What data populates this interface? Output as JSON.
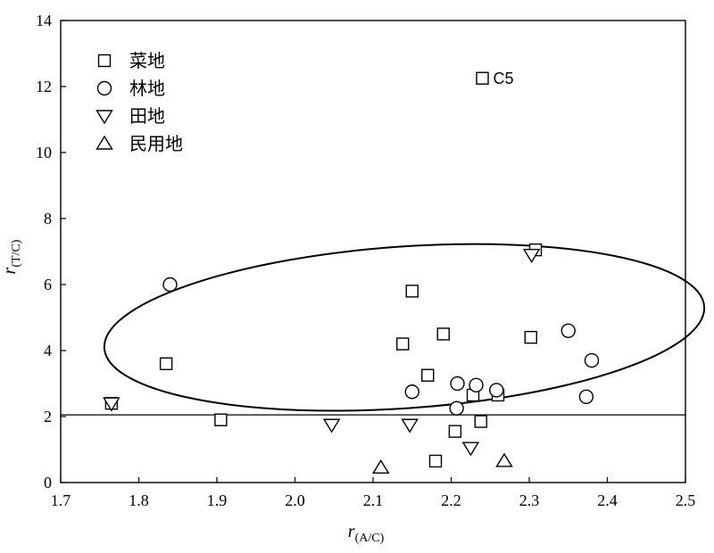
{
  "chart_data": {
    "type": "scatter",
    "xlabel": {
      "main": "r",
      "sub": "(A/C)"
    },
    "ylabel": {
      "main": "r",
      "sub": "(T/C)"
    },
    "xlim": [
      1.7,
      2.5
    ],
    "ylim": [
      0,
      14
    ],
    "xticks": [
      "1.7",
      "1.8",
      "1.9",
      "2.0",
      "2.1",
      "2.2",
      "2.3",
      "2.4",
      "2.5"
    ],
    "yticks": [
      "0",
      "2",
      "4",
      "6",
      "8",
      "10",
      "12",
      "14"
    ],
    "grid": false,
    "legend_position": "top-left",
    "series": [
      {
        "name": "菜地",
        "marker": "square",
        "points": [
          [
            1.765,
            2.4
          ],
          [
            1.835,
            3.6
          ],
          [
            1.905,
            1.9
          ],
          [
            2.138,
            4.2
          ],
          [
            2.15,
            5.8
          ],
          [
            2.17,
            3.25
          ],
          [
            2.18,
            0.65
          ],
          [
            2.19,
            4.5
          ],
          [
            2.205,
            1.55
          ],
          [
            2.228,
            2.65
          ],
          [
            2.238,
            1.85
          ],
          [
            2.24,
            12.25
          ],
          [
            2.26,
            2.65
          ],
          [
            2.302,
            4.4
          ],
          [
            2.308,
            7.05
          ]
        ]
      },
      {
        "name": "林地",
        "marker": "circle",
        "points": [
          [
            1.84,
            6.0
          ],
          [
            2.15,
            2.75
          ],
          [
            2.207,
            2.25
          ],
          [
            2.208,
            3.0
          ],
          [
            2.232,
            2.95
          ],
          [
            2.258,
            2.8
          ],
          [
            2.35,
            4.6
          ],
          [
            2.373,
            2.6
          ],
          [
            2.38,
            3.7
          ]
        ]
      },
      {
        "name": "田地",
        "marker": "triangle-down",
        "points": [
          [
            1.765,
            2.4
          ],
          [
            2.047,
            1.75
          ],
          [
            2.147,
            1.75
          ],
          [
            2.225,
            1.05
          ],
          [
            2.303,
            6.9
          ]
        ]
      },
      {
        "name": "民用地",
        "marker": "triangle-up",
        "points": [
          [
            2.11,
            0.45
          ],
          [
            2.268,
            0.65
          ]
        ]
      }
    ],
    "reference_line_y": 2.05,
    "ellipse": {
      "center": [
        2.14,
        4.7
      ],
      "semi_axis_x": 0.385,
      "semi_axis_y": 2.45,
      "tilt_deg": -4
    },
    "annotations": [
      {
        "text": "C5",
        "x": 2.24,
        "y": 12.25
      }
    ]
  }
}
